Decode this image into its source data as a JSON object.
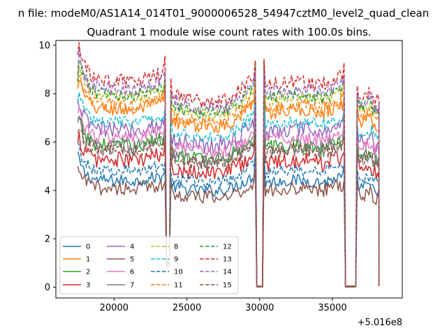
{
  "chart_data": {
    "type": "line",
    "suptitle": "n file: modeM0/AS1A14_014T01_9000006528_54947cztM0_level2_quad_clean",
    "title": "Quadrant 1 module wise count rates with 100.0s bins.",
    "xlabel": "",
    "ylabel": "",
    "x_offset_label": "+5.016e8",
    "xlim": [
      16000,
      39800
    ],
    "ylim": [
      -0.45,
      10.2
    ],
    "xticks": [
      20000,
      25000,
      30000,
      35000
    ],
    "xtick_labels": [
      "20000",
      "25000",
      "30000",
      "35000"
    ],
    "yticks": [
      0,
      2,
      4,
      6,
      8,
      10
    ],
    "ytick_labels": [
      "0",
      "2",
      "4",
      "6",
      "8",
      "10"
    ],
    "x_range": [
      17500,
      38200
    ],
    "bin_seconds": 100,
    "gaps": [
      {
        "start": 23600,
        "end": 23800,
        "min": 1.0
      },
      {
        "start": 29750,
        "end": 30250,
        "min": 0.0
      },
      {
        "start": 35900,
        "end": 36600,
        "min": 0.0
      }
    ],
    "legend": {
      "position": "lower left",
      "columns": 4,
      "entries": [
        "0",
        "1",
        "2",
        "3",
        "4",
        "5",
        "6",
        "7",
        "8",
        "9",
        "10",
        "11",
        "12",
        "13",
        "14",
        "15"
      ]
    },
    "series": [
      {
        "name": "0",
        "style": "solid",
        "color": "#1f77b4",
        "level": 4.2,
        "start": 5.6,
        "peak": 5.7,
        "noise": 0.25
      },
      {
        "name": "1",
        "style": "solid",
        "color": "#ff7f0e",
        "level": 7.0,
        "start": 8.3,
        "peak": 8.8,
        "noise": 0.3
      },
      {
        "name": "2",
        "style": "solid",
        "color": "#2ca02c",
        "level": 5.6,
        "start": 7.0,
        "peak": 9.2,
        "noise": 0.3
      },
      {
        "name": "3",
        "style": "solid",
        "color": "#d62728",
        "level": 5.0,
        "start": 6.0,
        "peak": 6.2,
        "noise": 0.35
      },
      {
        "name": "4",
        "style": "solid",
        "color": "#9467bd",
        "level": 6.2,
        "start": 7.8,
        "peak": 7.6,
        "noise": 0.35
      },
      {
        "name": "5",
        "style": "solid",
        "color": "#8c564b",
        "level": 3.9,
        "start": 5.0,
        "peak": 4.9,
        "noise": 0.3
      },
      {
        "name": "6",
        "style": "solid",
        "color": "#e377c2",
        "level": 5.9,
        "start": 7.2,
        "peak": 6.9,
        "noise": 0.3
      },
      {
        "name": "7",
        "style": "solid",
        "color": "#7f7f7f",
        "level": 5.5,
        "start": 6.8,
        "peak": 6.6,
        "noise": 0.3
      },
      {
        "name": "8",
        "style": "dashed",
        "color": "#bcbd22",
        "level": 7.5,
        "start": 8.6,
        "peak": 8.4,
        "noise": 0.25
      },
      {
        "name": "9",
        "style": "dashed",
        "color": "#17becf",
        "level": 6.5,
        "start": 7.6,
        "peak": 7.6,
        "noise": 0.25
      },
      {
        "name": "10",
        "style": "dashed",
        "color": "#1f77b4",
        "level": 4.6,
        "start": 6.0,
        "peak": 5.6,
        "noise": 0.25
      },
      {
        "name": "11",
        "style": "dashed",
        "color": "#ff7f0e",
        "level": 7.2,
        "start": 8.2,
        "peak": 8.5,
        "noise": 0.25
      },
      {
        "name": "12",
        "style": "dashed",
        "color": "#2ca02c",
        "level": 7.6,
        "start": 8.5,
        "peak": 9.3,
        "noise": 0.25
      },
      {
        "name": "13",
        "style": "dashed",
        "color": "#d62728",
        "level": 8.1,
        "start": 9.6,
        "peak": 9.4,
        "noise": 0.3
      },
      {
        "name": "14",
        "style": "dashed",
        "color": "#9467bd",
        "level": 7.8,
        "start": 8.8,
        "peak": 9.0,
        "noise": 0.3
      },
      {
        "name": "15",
        "style": "dashed",
        "color": "#8c564b",
        "level": 5.4,
        "start": 6.4,
        "peak": 6.2,
        "noise": 0.3
      }
    ]
  }
}
